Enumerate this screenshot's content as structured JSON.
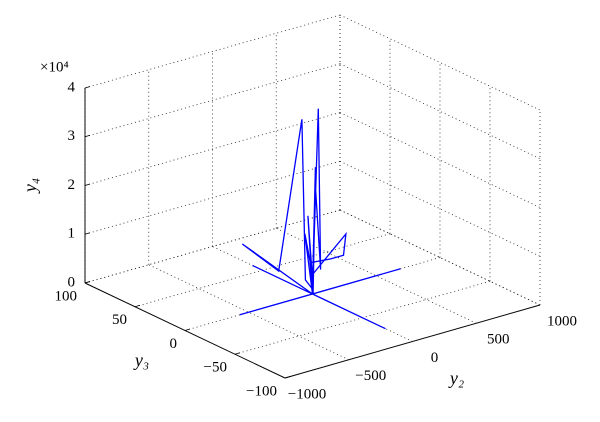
{
  "chart_data": {
    "type": "line3d",
    "xlabel": "y₂",
    "ylabel": "y₃",
    "zlabel": "y₄",
    "zscale": "×10⁴",
    "xlim": [
      -1000,
      1000
    ],
    "ylim": [
      -100,
      100
    ],
    "zlim": [
      0,
      4
    ],
    "xticks": [
      {
        "value": -1000,
        "label": "−1000"
      },
      {
        "value": -500,
        "label": "−500"
      },
      0,
      500,
      1000
    ],
    "yticks": [
      {
        "value": -100,
        "label": "−100"
      },
      {
        "value": -50,
        "label": "−50"
      },
      0,
      50,
      100
    ],
    "zticks": [
      0,
      1,
      2,
      3,
      4
    ],
    "grid": true,
    "color": "#0000ff",
    "x": [
      0,
      0,
      0,
      -570,
      690,
      0,
      -50,
      -80,
      -30,
      -60,
      -40,
      0,
      30,
      40,
      20,
      10,
      -20,
      0,
      15,
      5,
      60,
      300,
      400,
      380,
      0,
      -20,
      0
    ],
    "y": [
      60,
      -73,
      0,
      0,
      0,
      0,
      55,
      60,
      30,
      3,
      2,
      0,
      -2,
      -3,
      0,
      1,
      2,
      0,
      -1,
      0,
      10,
      20,
      20,
      15,
      0,
      5,
      0
    ],
    "z": [
      0,
      0,
      0,
      0,
      0,
      0,
      0.4,
      0.5,
      0.2,
      3.6,
      0.3,
      0.1,
      3.8,
      0.5,
      2.3,
      0.2,
      1.6,
      0.1,
      2.6,
      0,
      0.5,
      0.3,
      0.3,
      0.8,
      0.4,
      1.2,
      0
    ]
  }
}
